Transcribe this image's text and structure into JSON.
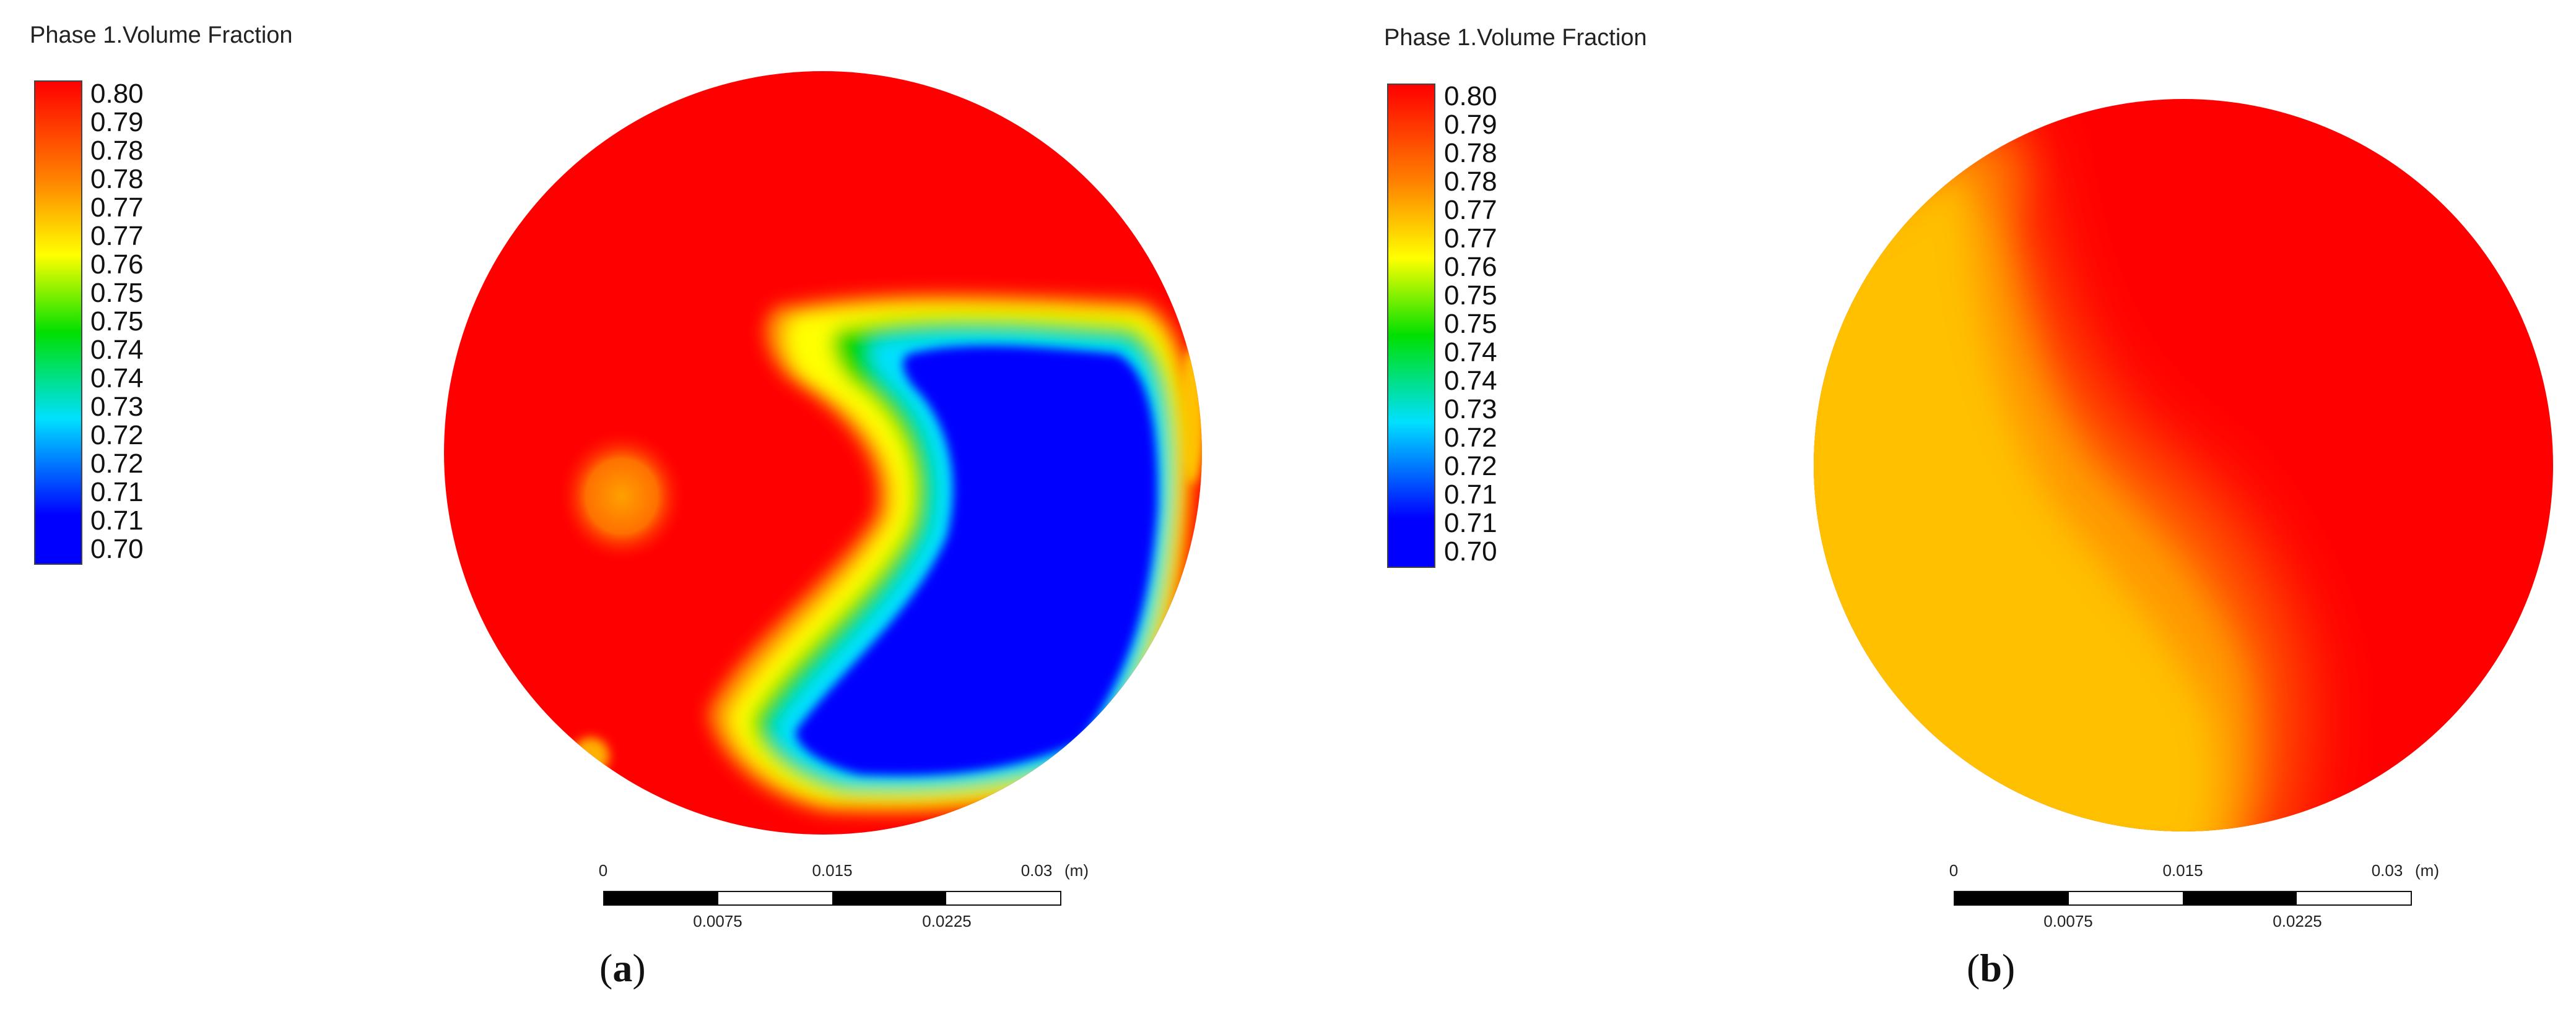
{
  "panels": [
    {
      "id": "a",
      "legend_title": "Phase 1.Volume Fraction",
      "colorbar_ticks": [
        "0.80",
        "0.79",
        "0.78",
        "0.78",
        "0.77",
        "0.77",
        "0.76",
        "0.75",
        "0.75",
        "0.74",
        "0.74",
        "0.73",
        "0.72",
        "0.72",
        "0.71",
        "0.71",
        "0.70"
      ],
      "scale_top": [
        "0",
        "0.015",
        "0.03",
        "(m)"
      ],
      "scale_bottom": [
        "0.0075",
        "0.0225"
      ],
      "label_open": "(",
      "label_letter": "a",
      "label_close": ")"
    },
    {
      "id": "b",
      "legend_title": "Phase 1.Volume Fraction",
      "colorbar_ticks": [
        "0.80",
        "0.79",
        "0.78",
        "0.78",
        "0.77",
        "0.77",
        "0.76",
        "0.75",
        "0.75",
        "0.74",
        "0.74",
        "0.73",
        "0.72",
        "0.72",
        "0.71",
        "0.71",
        "0.70"
      ],
      "scale_top": [
        "0",
        "0.015",
        "0.03",
        "(m)"
      ],
      "scale_bottom": [
        "0.0075",
        "0.0225"
      ],
      "label_open": "(",
      "label_letter": "b",
      "label_close": ")"
    }
  ],
  "colors": {
    "max": "#ff0000",
    "orange": "#ff8000",
    "yellow": "#ffff00",
    "green": "#00e000",
    "cyan": "#00e0ff",
    "min": "#0000ff"
  }
}
